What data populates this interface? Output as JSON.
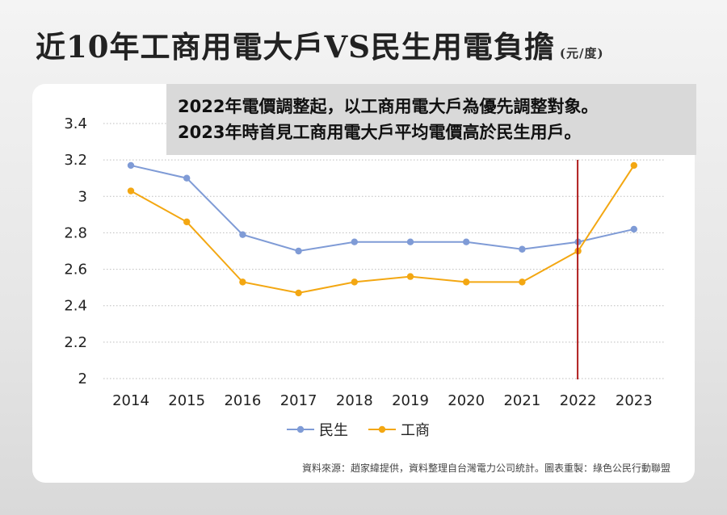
{
  "title": "近10年工商用電大戶VS民生用電負擔",
  "unit": "(元/度)",
  "note_lines": [
    "2022年電價調整起，以工商用電大戶為優先調整對象。",
    "2023年時首見工商用電大戶平均電價高於民生用戶。"
  ],
  "source": "資料來源：趙家緯提供，資料整理自台灣電力公司統計。圖表重製：綠色公民行動聯盟",
  "chart_data": {
    "type": "line",
    "title": "近10年工商用電大戶VS民生用電負擔",
    "ylabel": "(元/度)",
    "xlabel": "",
    "x": [
      "2014",
      "2015",
      "2016",
      "2017",
      "2018",
      "2019",
      "2020",
      "2021",
      "2022",
      "2023"
    ],
    "yticks": [
      "2",
      "2.2",
      "2.4",
      "2.6",
      "2.8",
      "3",
      "3.2",
      "3.4"
    ],
    "ylim": [
      2,
      3.4
    ],
    "grid": "horizontal dotted",
    "legend_position": "bottom",
    "series": [
      {
        "name": "民生",
        "color": "#7f9bd6",
        "values": [
          3.17,
          3.1,
          2.79,
          2.7,
          2.75,
          2.75,
          2.75,
          2.71,
          2.75,
          2.82
        ]
      },
      {
        "name": "工商",
        "color": "#f3a712",
        "values": [
          3.03,
          2.86,
          2.53,
          2.47,
          2.53,
          2.56,
          2.53,
          2.53,
          2.7,
          3.17
        ]
      }
    ],
    "marker_line": {
      "x": "2022",
      "color": "#b01e1e"
    }
  }
}
